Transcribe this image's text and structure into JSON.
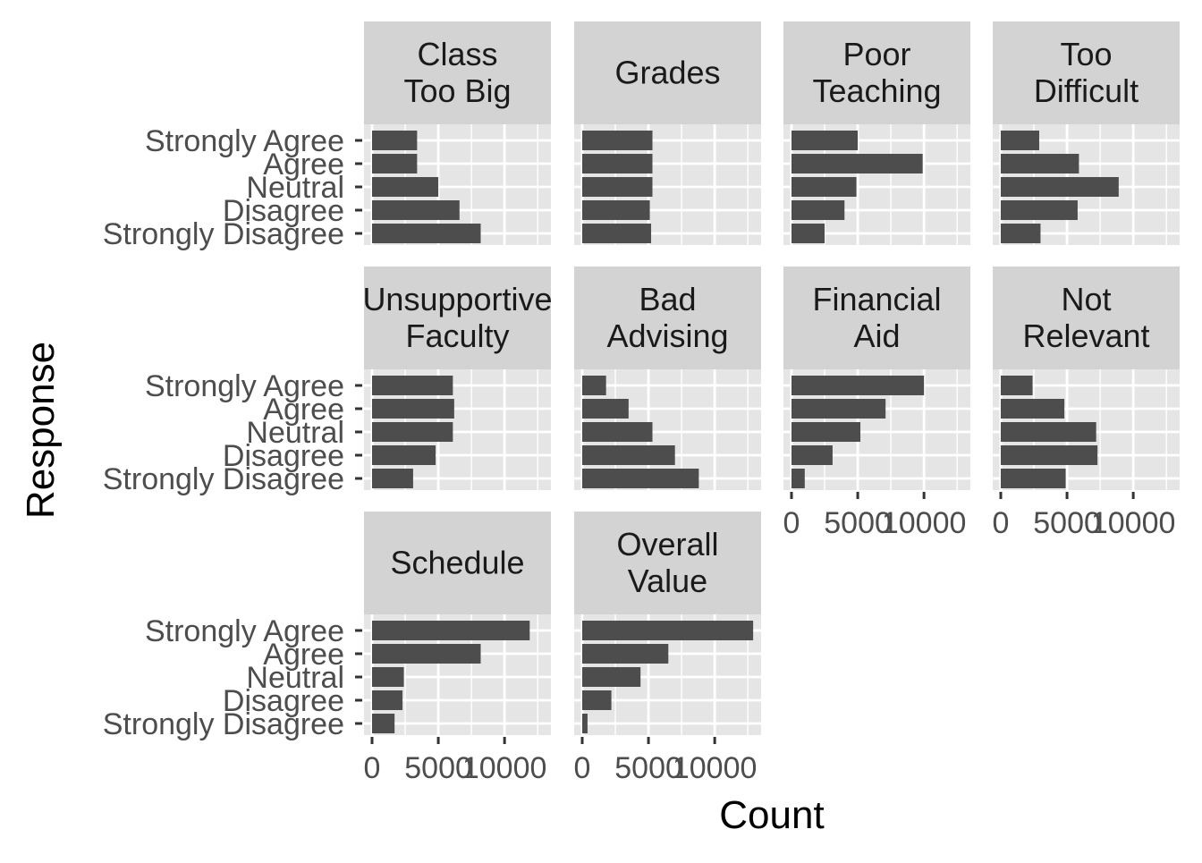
{
  "colors": {
    "panel_background": "#e5e5e5",
    "strip_background": "#d3d3d3",
    "gridline": "#ffffff",
    "bar_fill": "#4d4d4d",
    "tick_text": "#4d4d4d",
    "axis_title_text": "#000000"
  },
  "chart_data": {
    "type": "bar",
    "orientation": "horizontal",
    "layout": "faceted 4 columns x 3 rows",
    "xlabel": "Count",
    "ylabel": "Response",
    "xlim": [
      0,
      13500
    ],
    "x_ticks": [
      0,
      5000,
      10000
    ],
    "x_tick_labels": [
      "0",
      "5000",
      "10000"
    ],
    "categories": [
      "Strongly Agree",
      "Agree",
      "Neutral",
      "Disagree",
      "Strongly Disagree"
    ],
    "grid": true,
    "legend": "none",
    "facets": [
      {
        "name": "Class Too Big",
        "strip_lines": [
          "Class",
          "Too Big"
        ],
        "values": [
          3400,
          3400,
          5000,
          6600,
          8200
        ]
      },
      {
        "name": "Grades",
        "strip_lines": [
          "Grades"
        ],
        "values": [
          5300,
          5300,
          5300,
          5100,
          5200
        ]
      },
      {
        "name": "Poor Teaching",
        "strip_lines": [
          "Poor",
          "Teaching"
        ],
        "values": [
          5000,
          9900,
          4900,
          4000,
          2500
        ]
      },
      {
        "name": "Too Difficult",
        "strip_lines": [
          "Too",
          "Difficult"
        ],
        "values": [
          2900,
          5900,
          8900,
          5800,
          3000
        ]
      },
      {
        "name": "Unsupportive Faculty",
        "strip_lines": [
          "Unsupportive",
          "Faculty"
        ],
        "values": [
          6100,
          6200,
          6100,
          4800,
          3100
        ]
      },
      {
        "name": "Bad Advising",
        "strip_lines": [
          "Bad",
          "Advising"
        ],
        "values": [
          1800,
          3500,
          5300,
          7000,
          8800
        ]
      },
      {
        "name": "Financial Aid",
        "strip_lines": [
          "Financial",
          "Aid"
        ],
        "values": [
          10000,
          7100,
          5200,
          3100,
          1000
        ]
      },
      {
        "name": "Not Relevant",
        "strip_lines": [
          "Not",
          "Relevant"
        ],
        "values": [
          2400,
          4800,
          7200,
          7300,
          4900
        ]
      },
      {
        "name": "Schedule",
        "strip_lines": [
          "Schedule"
        ],
        "values": [
          11900,
          8200,
          2400,
          2300,
          1700
        ]
      },
      {
        "name": "Overall Value",
        "strip_lines": [
          "Overall",
          "Value"
        ],
        "values": [
          12900,
          6500,
          4400,
          2200,
          400
        ]
      }
    ]
  }
}
